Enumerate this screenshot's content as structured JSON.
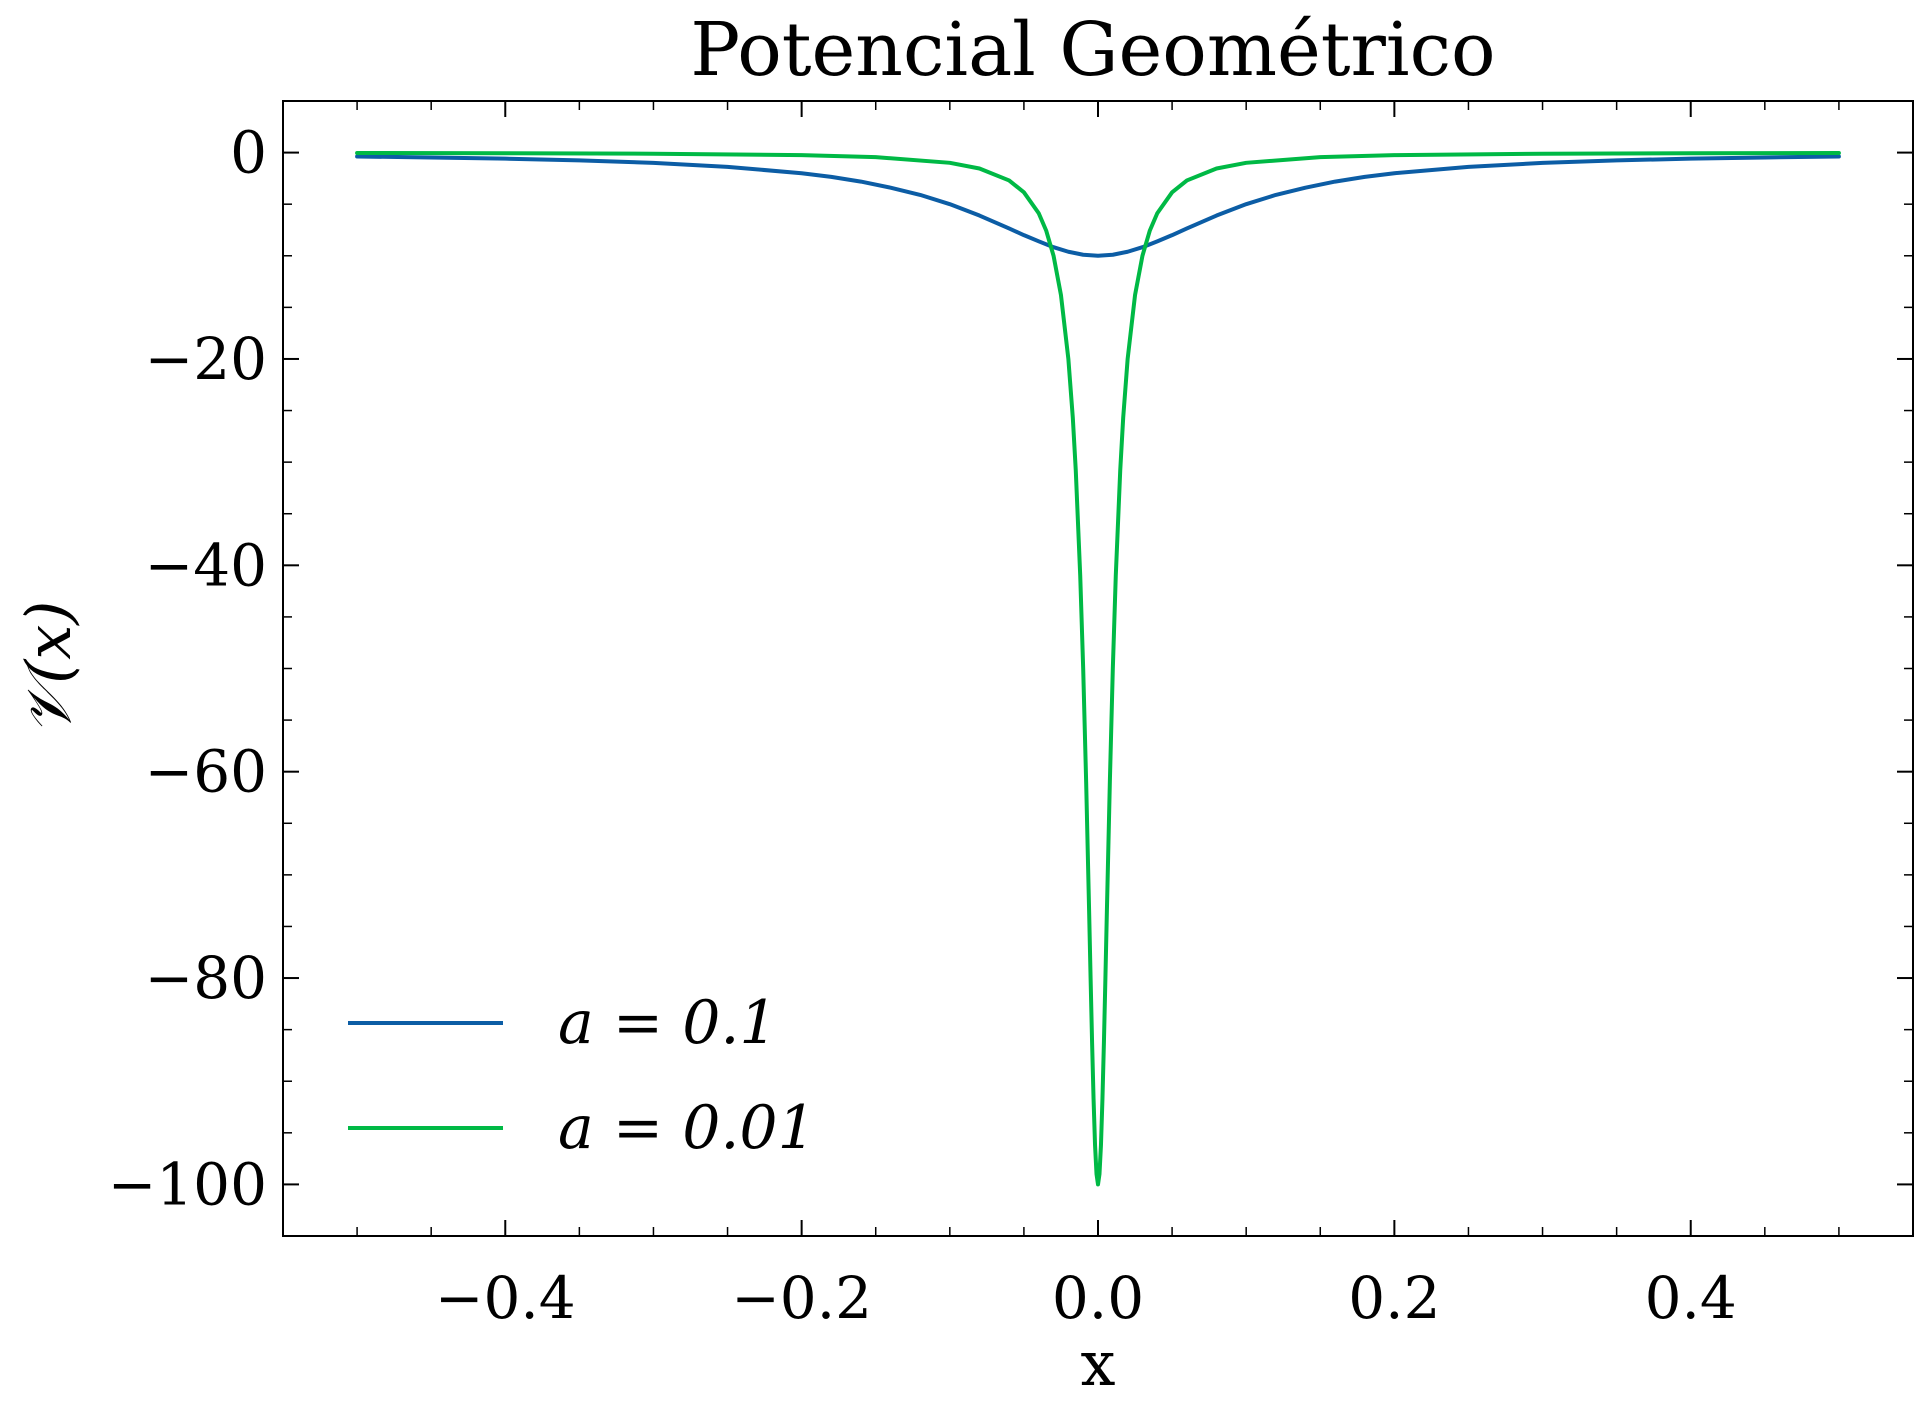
{
  "chart_data": {
    "type": "line",
    "title": "Potencial Geométrico",
    "xlabel": "x",
    "ylabel": "𝒱(x)",
    "xlim": [
      -0.55,
      0.55
    ],
    "ylim": [
      -105,
      5
    ],
    "x_ticks": [
      -0.4,
      -0.2,
      0.0,
      0.2,
      0.4
    ],
    "x_tick_labels": [
      "−0.4",
      "−0.2",
      "0.0",
      "0.2",
      "0.4"
    ],
    "y_ticks": [
      0,
      -20,
      -40,
      -60,
      -80,
      -100
    ],
    "y_tick_labels": [
      "0",
      "−20",
      "−40",
      "−60",
      "−80",
      "−100"
    ],
    "grid": false,
    "legend_position": "lower-left",
    "series": [
      {
        "name": "a = 0.1",
        "color": "#0C5DA5",
        "x": [
          -0.5,
          -0.45,
          -0.4,
          -0.35,
          -0.3,
          -0.25,
          -0.2,
          -0.18,
          -0.16,
          -0.14,
          -0.12,
          -0.1,
          -0.08,
          -0.06,
          -0.05,
          -0.04,
          -0.03,
          -0.02,
          -0.01,
          0.0,
          0.01,
          0.02,
          0.03,
          0.04,
          0.05,
          0.06,
          0.08,
          0.1,
          0.12,
          0.14,
          0.16,
          0.18,
          0.2,
          0.25,
          0.3,
          0.35,
          0.4,
          0.45,
          0.5
        ],
        "y": [
          -0.38,
          -0.47,
          -0.59,
          -0.75,
          -1.0,
          -1.38,
          -2.0,
          -2.35,
          -2.81,
          -3.4,
          -4.1,
          -5.0,
          -6.1,
          -7.35,
          -8.0,
          -8.6,
          -9.17,
          -9.61,
          -9.9,
          -10.0,
          -9.9,
          -9.61,
          -9.17,
          -8.6,
          -8.0,
          -7.35,
          -6.1,
          -5.0,
          -4.1,
          -3.4,
          -2.81,
          -2.35,
          -2.0,
          -1.38,
          -1.0,
          -0.75,
          -0.59,
          -0.47,
          -0.38
        ]
      },
      {
        "name": "a = 0.01",
        "color": "#00B945",
        "x": [
          -0.5,
          -0.4,
          -0.3,
          -0.2,
          -0.15,
          -0.1,
          -0.08,
          -0.06,
          -0.05,
          -0.04,
          -0.035,
          -0.03,
          -0.025,
          -0.02,
          -0.017,
          -0.015,
          -0.012,
          -0.01,
          -0.008,
          -0.006,
          -0.005,
          -0.004,
          -0.003,
          -0.002,
          -0.001,
          0.0,
          0.001,
          0.002,
          0.003,
          0.004,
          0.005,
          0.006,
          0.008,
          0.01,
          0.012,
          0.015,
          0.017,
          0.02,
          0.025,
          0.03,
          0.035,
          0.04,
          0.05,
          0.06,
          0.08,
          0.1,
          0.15,
          0.2,
          0.3,
          0.4,
          0.5
        ],
        "y": [
          -0.04,
          -0.06,
          -0.11,
          -0.25,
          -0.44,
          -0.99,
          -1.54,
          -2.7,
          -3.85,
          -5.88,
          -7.55,
          -10.0,
          -13.8,
          -20.0,
          -25.7,
          -30.8,
          -41.0,
          -50.0,
          -61.0,
          -73.5,
          -80.0,
          -86.2,
          -91.7,
          -96.2,
          -99.0,
          -100.0,
          -99.0,
          -96.2,
          -91.7,
          -86.2,
          -80.0,
          -73.5,
          -61.0,
          -50.0,
          -41.0,
          -30.8,
          -25.7,
          -20.0,
          -13.8,
          -10.0,
          -7.55,
          -5.88,
          -3.85,
          -2.7,
          -1.54,
          -0.99,
          -0.44,
          -0.25,
          -0.11,
          -0.06,
          -0.04
        ]
      }
    ]
  }
}
